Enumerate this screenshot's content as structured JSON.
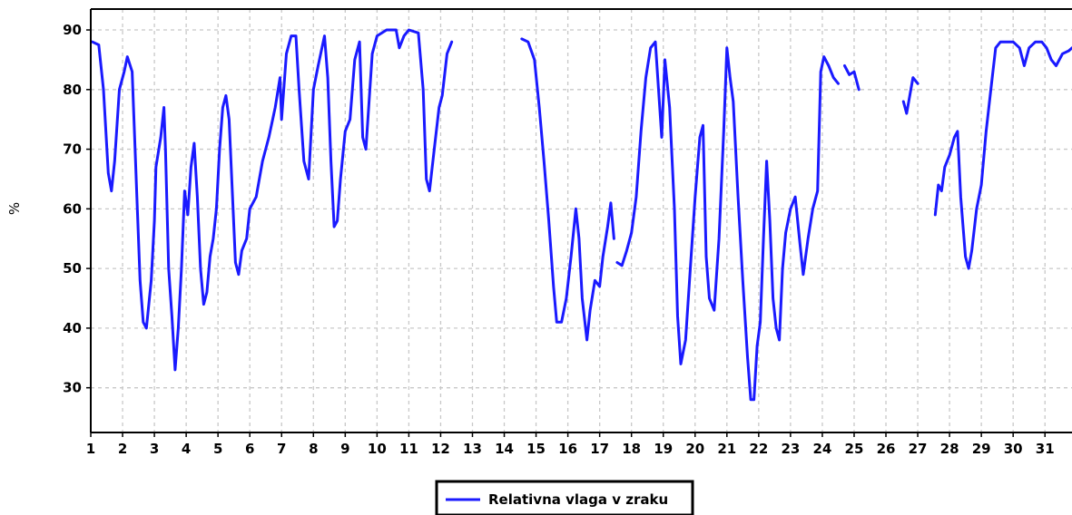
{
  "chart_data": {
    "type": "line",
    "title": "",
    "xlabel": "",
    "ylabel": "%",
    "xlim": [
      1,
      31.85
    ],
    "ylim": [
      22.5,
      93.5
    ],
    "x_ticks": [
      "1",
      "2",
      "3",
      "4",
      "5",
      "6",
      "7",
      "8",
      "9",
      "10",
      "11",
      "12",
      "13",
      "14",
      "15",
      "16",
      "17",
      "18",
      "19",
      "20",
      "21",
      "22",
      "23",
      "24",
      "25",
      "26",
      "27",
      "28",
      "29",
      "30",
      "31"
    ],
    "y_ticks": [
      "30",
      "40",
      "50",
      "60",
      "70",
      "80",
      "90"
    ],
    "grid": true,
    "legend_position": "bottom-center",
    "series": [
      {
        "name": "Relativna vlaga v zraku",
        "color": "#1a1aff",
        "segments": [
          [
            [
              1.05,
              88
            ],
            [
              1.25,
              87.5
            ],
            [
              1.4,
              80
            ],
            [
              1.55,
              66
            ],
            [
              1.65,
              63
            ],
            [
              1.75,
              68
            ],
            [
              1.9,
              80
            ],
            [
              2.05,
              83
            ],
            [
              2.15,
              85.5
            ],
            [
              2.3,
              83
            ],
            [
              2.45,
              62
            ],
            [
              2.55,
              48
            ],
            [
              2.65,
              41
            ],
            [
              2.75,
              40
            ],
            [
              2.9,
              48
            ],
            [
              3.0,
              58
            ],
            [
              3.05,
              67
            ],
            [
              3.2,
              72
            ],
            [
              3.3,
              77
            ],
            [
              3.35,
              70
            ],
            [
              3.45,
              50
            ],
            [
              3.55,
              42
            ],
            [
              3.65,
              33
            ],
            [
              3.75,
              40
            ],
            [
              3.85,
              50
            ],
            [
              3.95,
              63
            ],
            [
              4.05,
              59
            ],
            [
              4.15,
              67
            ],
            [
              4.25,
              71
            ],
            [
              4.35,
              62
            ],
            [
              4.45,
              50
            ],
            [
              4.55,
              44
            ],
            [
              4.65,
              46
            ],
            [
              4.75,
              52
            ],
            [
              4.85,
              55
            ],
            [
              4.95,
              60
            ],
            [
              5.05,
              70
            ],
            [
              5.15,
              77
            ],
            [
              5.25,
              79
            ],
            [
              5.35,
              75
            ],
            [
              5.45,
              63
            ],
            [
              5.55,
              51
            ],
            [
              5.65,
              49
            ],
            [
              5.75,
              53
            ],
            [
              5.9,
              55
            ],
            [
              6.0,
              60
            ],
            [
              6.2,
              62
            ],
            [
              6.4,
              68
            ],
            [
              6.6,
              72
            ],
            [
              6.8,
              77
            ],
            [
              6.95,
              82
            ],
            [
              7.0,
              75
            ],
            [
              7.15,
              86
            ],
            [
              7.3,
              89
            ],
            [
              7.45,
              89
            ],
            [
              7.55,
              80
            ],
            [
              7.7,
              68
            ],
            [
              7.85,
              65
            ],
            [
              8.0,
              80
            ],
            [
              8.15,
              84
            ],
            [
              8.35,
              89
            ],
            [
              8.45,
              82
            ],
            [
              8.55,
              68
            ],
            [
              8.65,
              57
            ],
            [
              8.75,
              58
            ],
            [
              8.85,
              65
            ],
            [
              9.0,
              73
            ],
            [
              9.15,
              75
            ],
            [
              9.3,
              85
            ],
            [
              9.45,
              88
            ],
            [
              9.55,
              72
            ],
            [
              9.65,
              70
            ],
            [
              9.85,
              86
            ],
            [
              10.0,
              89
            ],
            [
              10.3,
              90
            ],
            [
              10.6,
              90
            ],
            [
              10.7,
              87
            ],
            [
              10.85,
              89
            ],
            [
              11.0,
              90
            ],
            [
              11.3,
              89.5
            ],
            [
              11.45,
              80
            ],
            [
              11.55,
              65
            ],
            [
              11.65,
              63
            ],
            [
              11.8,
              70
            ],
            [
              11.95,
              77
            ],
            [
              12.05,
              79
            ],
            [
              12.2,
              86
            ],
            [
              12.35,
              88
            ]
          ],
          [
            [
              14.55,
              88.5
            ],
            [
              14.75,
              88
            ],
            [
              14.95,
              85
            ],
            [
              15.1,
              77
            ],
            [
              15.25,
              68
            ],
            [
              15.4,
              58
            ],
            [
              15.55,
              47
            ],
            [
              15.65,
              41
            ],
            [
              15.8,
              41
            ],
            [
              15.95,
              45
            ],
            [
              16.1,
              52
            ],
            [
              16.25,
              60
            ],
            [
              16.35,
              55
            ],
            [
              16.45,
              45
            ],
            [
              16.6,
              38
            ],
            [
              16.7,
              43
            ],
            [
              16.85,
              48
            ],
            [
              17.0,
              47
            ],
            [
              17.1,
              52
            ],
            [
              17.25,
              57
            ],
            [
              17.35,
              61
            ],
            [
              17.45,
              55
            ]
          ],
          [
            [
              17.55,
              51
            ],
            [
              17.7,
              50.5
            ],
            [
              17.85,
              53
            ],
            [
              18.0,
              56
            ],
            [
              18.15,
              62
            ],
            [
              18.3,
              73
            ],
            [
              18.45,
              82
            ],
            [
              18.6,
              87
            ],
            [
              18.75,
              88
            ],
            [
              18.85,
              80
            ],
            [
              18.95,
              72
            ],
            [
              19.05,
              85
            ],
            [
              19.2,
              77
            ],
            [
              19.35,
              60
            ],
            [
              19.45,
              42
            ],
            [
              19.55,
              34
            ],
            [
              19.7,
              38
            ],
            [
              19.85,
              50
            ],
            [
              20.0,
              62
            ],
            [
              20.15,
              72
            ],
            [
              20.25,
              74
            ],
            [
              20.35,
              52
            ],
            [
              20.45,
              45
            ],
            [
              20.6,
              43
            ],
            [
              20.75,
              55
            ],
            [
              20.9,
              73
            ],
            [
              21.0,
              87
            ],
            [
              21.1,
              82
            ],
            [
              21.2,
              78
            ],
            [
              21.35,
              62
            ],
            [
              21.5,
              48
            ],
            [
              21.65,
              35
            ],
            [
              21.75,
              28
            ],
            [
              21.85,
              28
            ],
            [
              21.95,
              37
            ],
            [
              22.05,
              41
            ],
            [
              22.15,
              55
            ],
            [
              22.25,
              68
            ],
            [
              22.35,
              58
            ],
            [
              22.45,
              45
            ],
            [
              22.55,
              40
            ],
            [
              22.65,
              38
            ],
            [
              22.75,
              50
            ],
            [
              22.85,
              56
            ],
            [
              23.0,
              60
            ],
            [
              23.15,
              62
            ],
            [
              23.3,
              54
            ],
            [
              23.4,
              49
            ],
            [
              23.55,
              55
            ],
            [
              23.7,
              60
            ],
            [
              23.85,
              63
            ],
            [
              23.95,
              83
            ],
            [
              24.05,
              85.5
            ],
            [
              24.2,
              84
            ],
            [
              24.35,
              82
            ],
            [
              24.5,
              81
            ]
          ],
          [
            [
              24.7,
              84
            ],
            [
              24.85,
              82.5
            ],
            [
              25.0,
              83
            ],
            [
              25.15,
              80
            ]
          ],
          [
            [
              26.55,
              78
            ],
            [
              26.65,
              76
            ],
            [
              26.75,
              79
            ],
            [
              26.85,
              82
            ],
            [
              27.0,
              81
            ]
          ],
          [
            [
              27.55,
              59
            ],
            [
              27.65,
              64
            ],
            [
              27.75,
              63
            ],
            [
              27.85,
              67
            ],
            [
              28.0,
              69
            ],
            [
              28.15,
              72
            ],
            [
              28.25,
              73
            ],
            [
              28.35,
              62
            ],
            [
              28.5,
              52
            ],
            [
              28.6,
              50
            ],
            [
              28.7,
              53
            ],
            [
              28.85,
              60
            ],
            [
              29.0,
              64
            ],
            [
              29.15,
              73
            ],
            [
              29.3,
              80
            ],
            [
              29.45,
              87
            ],
            [
              29.6,
              88
            ],
            [
              29.8,
              88
            ],
            [
              30.0,
              88
            ],
            [
              30.2,
              87
            ],
            [
              30.35,
              84
            ],
            [
              30.5,
              87
            ],
            [
              30.7,
              88
            ],
            [
              30.9,
              88
            ],
            [
              31.05,
              87
            ],
            [
              31.2,
              85
            ],
            [
              31.35,
              84
            ],
            [
              31.55,
              86
            ],
            [
              31.75,
              86.5
            ],
            [
              31.85,
              87
            ]
          ]
        ]
      }
    ]
  }
}
